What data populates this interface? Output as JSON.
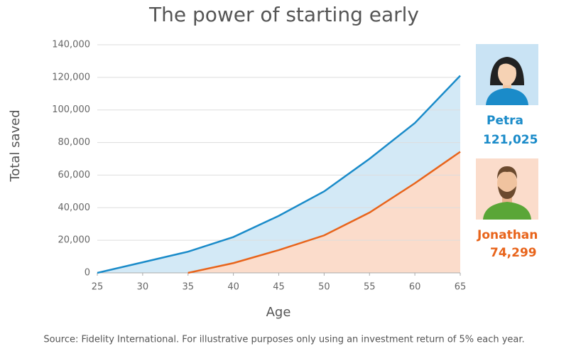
{
  "chart_data": {
    "type": "line",
    "title": "The power of starting early",
    "xlabel": "Age",
    "ylabel": "Total saved",
    "source": "Source: Fidelity International. For illustrative purposes only using an investment return of 5% each year.",
    "x": [
      25,
      30,
      35,
      40,
      45,
      50,
      55,
      60,
      65
    ],
    "series": [
      {
        "name": "Petra",
        "color": "#1a8bc9",
        "area_color": "#d3e9f6",
        "values": [
          0,
          6500,
          13000,
          22000,
          35000,
          50000,
          70000,
          92000,
          121025
        ],
        "value_labels": [
          null,
          null,
          null,
          null,
          null,
          null,
          null,
          null,
          "121,025"
        ]
      },
      {
        "name": "Jonathan",
        "color": "#e8641b",
        "area_color": "#fbdccb",
        "values": [
          null,
          null,
          0,
          6000,
          14000,
          23000,
          37000,
          55000,
          74299
        ],
        "value_labels": [
          null,
          null,
          null,
          null,
          null,
          null,
          null,
          null,
          "74,299"
        ]
      }
    ],
    "xlim": [
      25,
      65
    ],
    "xticks": [
      25,
      30,
      35,
      40,
      45,
      50,
      55,
      60,
      65
    ],
    "ylim": [
      0,
      140000
    ],
    "yticks": [
      0,
      {
        "value": 20000,
        "label": "20,000"
      },
      {
        "value": 40000,
        "label": "40,000"
      },
      {
        "value": 60000,
        "label": "60,000"
      },
      {
        "value": 80000,
        "label": "80,000"
      },
      {
        "value": 100000,
        "label": "100,000"
      },
      {
        "value": 120000,
        "label": "120,000"
      },
      {
        "value": 140000,
        "label": "140,000"
      }
    ],
    "grid": true
  }
}
